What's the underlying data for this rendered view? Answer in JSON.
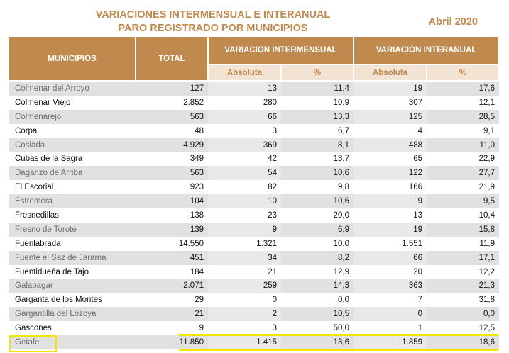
{
  "header": {
    "title_line1": "VARIACIONES INTERMENSUAL E INTERANUAL",
    "title_line2": "PARO REGISTRADO POR MUNICIPIOS",
    "date": "Abril 2020"
  },
  "table": {
    "columns": {
      "municipios": "MUNICIPIOS",
      "total": "TOTAL",
      "intermensual": "VARIACIÓN INTERMENSUAL",
      "interanual": "VARIACIÓN INTERANUAL",
      "absoluta": "Absoluta",
      "pct": "%"
    },
    "rows": [
      {
        "name": "Colmenar del Arroyo",
        "total": "127",
        "im_abs": "13",
        "im_pct": "11,4",
        "ia_abs": "19",
        "ia_pct": "17,6"
      },
      {
        "name": "Colmenar Viejo",
        "total": "2.852",
        "im_abs": "280",
        "im_pct": "10,9",
        "ia_abs": "307",
        "ia_pct": "12,1"
      },
      {
        "name": "Colmenarejo",
        "total": "563",
        "im_abs": "66",
        "im_pct": "13,3",
        "ia_abs": "125",
        "ia_pct": "28,5"
      },
      {
        "name": "Corpa",
        "total": "48",
        "im_abs": "3",
        "im_pct": "6,7",
        "ia_abs": "4",
        "ia_pct": "9,1"
      },
      {
        "name": "Coslada",
        "total": "4.929",
        "im_abs": "369",
        "im_pct": "8,1",
        "ia_abs": "488",
        "ia_pct": "11,0"
      },
      {
        "name": "Cubas de la Sagra",
        "total": "349",
        "im_abs": "42",
        "im_pct": "13,7",
        "ia_abs": "65",
        "ia_pct": "22,9"
      },
      {
        "name": "Daganzo de Arriba",
        "total": "563",
        "im_abs": "54",
        "im_pct": "10,6",
        "ia_abs": "122",
        "ia_pct": "27,7"
      },
      {
        "name": "El Escorial",
        "total": "923",
        "im_abs": "82",
        "im_pct": "9,8",
        "ia_abs": "166",
        "ia_pct": "21,9"
      },
      {
        "name": "Estremera",
        "total": "104",
        "im_abs": "10",
        "im_pct": "10,6",
        "ia_abs": "9",
        "ia_pct": "9,5"
      },
      {
        "name": "Fresnedillas",
        "total": "138",
        "im_abs": "23",
        "im_pct": "20,0",
        "ia_abs": "13",
        "ia_pct": "10,4"
      },
      {
        "name": "Fresno de Torote",
        "total": "139",
        "im_abs": "9",
        "im_pct": "6,9",
        "ia_abs": "19",
        "ia_pct": "15,8"
      },
      {
        "name": "Fuenlabrada",
        "total": "14.550",
        "im_abs": "1.321",
        "im_pct": "10,0",
        "ia_abs": "1.551",
        "ia_pct": "11,9"
      },
      {
        "name": "Fuente el Saz de Jarama",
        "total": "451",
        "im_abs": "34",
        "im_pct": "8,2",
        "ia_abs": "66",
        "ia_pct": "17,1"
      },
      {
        "name": "Fuentidueña de Tajo",
        "total": "184",
        "im_abs": "21",
        "im_pct": "12,9",
        "ia_abs": "20",
        "ia_pct": "12,2"
      },
      {
        "name": "Galapagar",
        "total": "2.071",
        "im_abs": "259",
        "im_pct": "14,3",
        "ia_abs": "363",
        "ia_pct": "21,3"
      },
      {
        "name": "Garganta de los Montes",
        "total": "29",
        "im_abs": "0",
        "im_pct": "0,0",
        "ia_abs": "7",
        "ia_pct": "31,8"
      },
      {
        "name": "Gargantilla del Lozoya",
        "total": "21",
        "im_abs": "2",
        "im_pct": "10,5",
        "ia_abs": "0",
        "ia_pct": "0,0"
      },
      {
        "name": "Gascones",
        "total": "9",
        "im_abs": "3",
        "im_pct": "50,0",
        "ia_abs": "1",
        "ia_pct": "12,5"
      },
      {
        "name": "Getafe",
        "total": "11.850",
        "im_abs": "1.415",
        "im_pct": "13,6",
        "ia_abs": "1.859",
        "ia_pct": "18,6"
      }
    ]
  },
  "highlight": {
    "row": "Getafe",
    "color": "#f2e600"
  }
}
